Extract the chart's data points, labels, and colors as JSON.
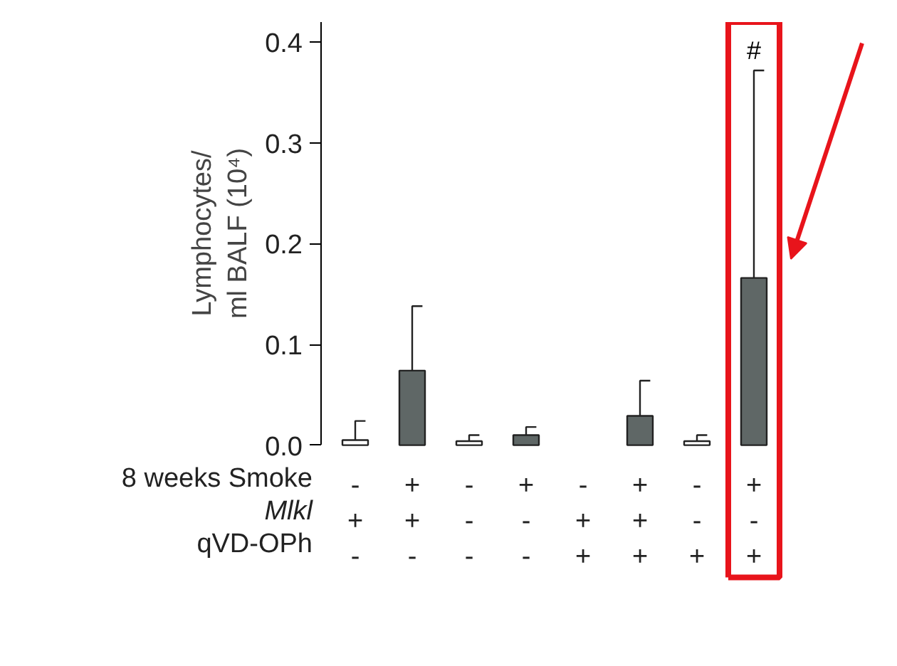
{
  "chart_data": {
    "type": "bar",
    "ylabel": "Lymphocytes/\nml BALF (10⁴)",
    "categories": [
      "-\n+\n-",
      "+\n+\n-",
      "-\n-\n-",
      "+\n-\n-",
      "-\n+\n+",
      "+\n+\n+",
      "-\n-\n+",
      "+\n-\n+"
    ],
    "values": [
      0.005,
      0.074,
      0.004,
      0.01,
      0,
      0.029,
      0.004,
      0.166
    ],
    "errors": [
      [
        0.005,
        0.024
      ],
      [
        0.074,
        0.138
      ],
      [
        0.004,
        0.01
      ],
      [
        0.01,
        0.018
      ],
      null,
      [
        0.029,
        0.064
      ],
      [
        0.004,
        0.01
      ],
      [
        0.166,
        0.372
      ]
    ],
    "colors": [
      "#ffffff",
      "#5f6766",
      "#ffffff",
      "#5f6766",
      "#ffffff",
      "#5f6766",
      "#ffffff",
      "#5f6766"
    ],
    "ylim": [
      0,
      0.42
    ],
    "yticks": [
      {
        "value": 0,
        "label": "0.0"
      },
      0.1,
      0.2,
      0.3,
      0.4
    ],
    "grid": false,
    "annotations": [
      "8 weeks Smoke",
      "Mlkl",
      "qVD-OPh",
      {
        "text": "#",
        "x": "+\n-\n+",
        "y": 0.372
      }
    ]
  }
}
